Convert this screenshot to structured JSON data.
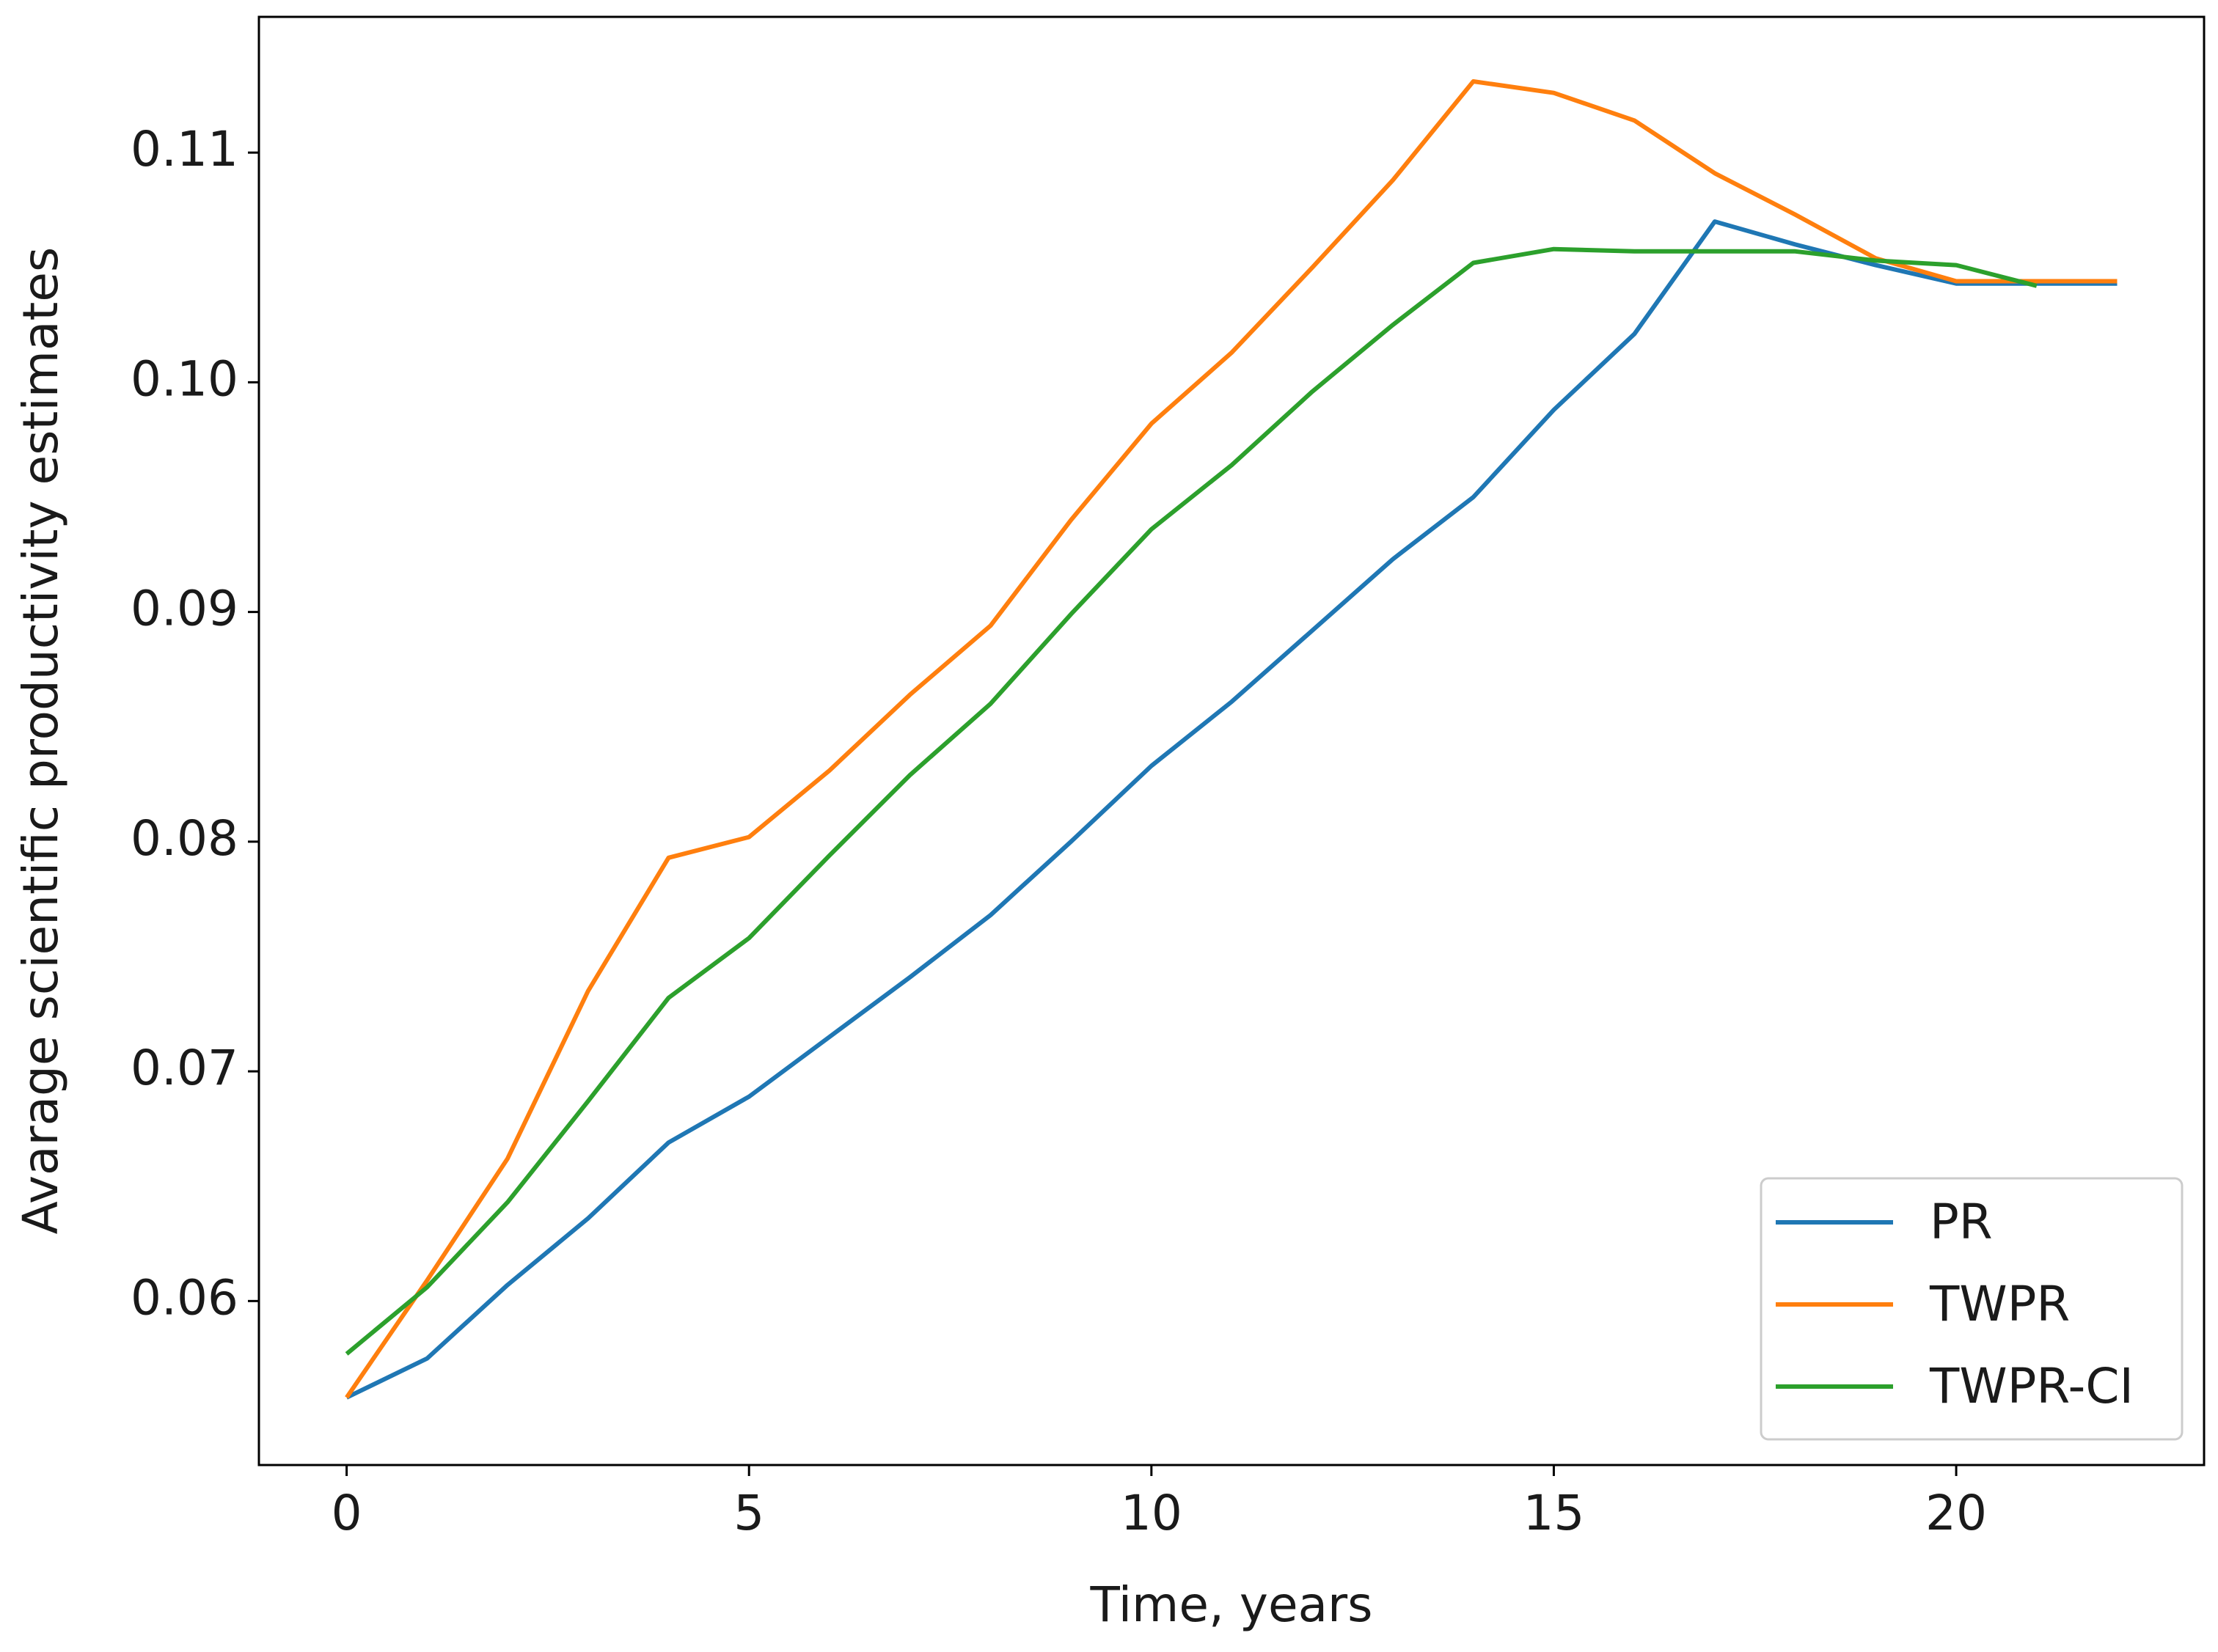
{
  "chart_data": {
    "type": "line",
    "xlabel": "Time, years",
    "ylabel": "Avarage scientific productivity estimates",
    "x": [
      0,
      1,
      2,
      3,
      4,
      5,
      6,
      7,
      8,
      9,
      10,
      11,
      12,
      13,
      14,
      15,
      16,
      17,
      18,
      19,
      20,
      21,
      22
    ],
    "series": [
      {
        "name": "PR",
        "color": "#1f77b4",
        "values": [
          0.0558,
          0.0575,
          0.0607,
          0.0636,
          0.0669,
          0.0689,
          0.0715,
          0.0741,
          0.0768,
          0.08,
          0.0833,
          0.0861,
          0.0892,
          0.0923,
          0.095,
          0.0988,
          0.1021,
          0.107,
          0.106,
          0.1051,
          0.1043,
          0.1043,
          0.1043
        ]
      },
      {
        "name": "TWPR",
        "color": "#ff7f0e",
        "values": [
          0.0558,
          0.0609,
          0.0662,
          0.0735,
          0.0793,
          0.0802,
          0.0831,
          0.0864,
          0.0894,
          0.094,
          0.0982,
          0.1013,
          0.105,
          0.1088,
          0.1131,
          0.1126,
          0.1114,
          0.1091,
          0.1073,
          0.1054,
          0.1044,
          0.1044,
          0.1044
        ]
      },
      {
        "name": "TWPR-CI",
        "color": "#2ca02c",
        "values": [
          0.0577,
          0.0606,
          0.0643,
          0.0687,
          0.0732,
          0.0758,
          0.0794,
          0.0829,
          0.086,
          0.0899,
          0.0936,
          0.0964,
          0.0996,
          0.1025,
          0.1052,
          0.1058,
          0.1057,
          0.1057,
          0.1057,
          0.1053,
          0.1051,
          0.1042,
          null
        ]
      }
    ],
    "xlim": [
      -1.09,
      23.08
    ],
    "ylim": [
      0.05286,
      0.11591
    ],
    "xticks": [
      0,
      5,
      10,
      15,
      20
    ],
    "yticks": [
      0.06,
      0.07,
      0.08,
      0.09,
      {
        "value": 0.1,
        "label": "0.10"
      },
      0.11
    ],
    "legend": "lower right",
    "grid": false
  }
}
